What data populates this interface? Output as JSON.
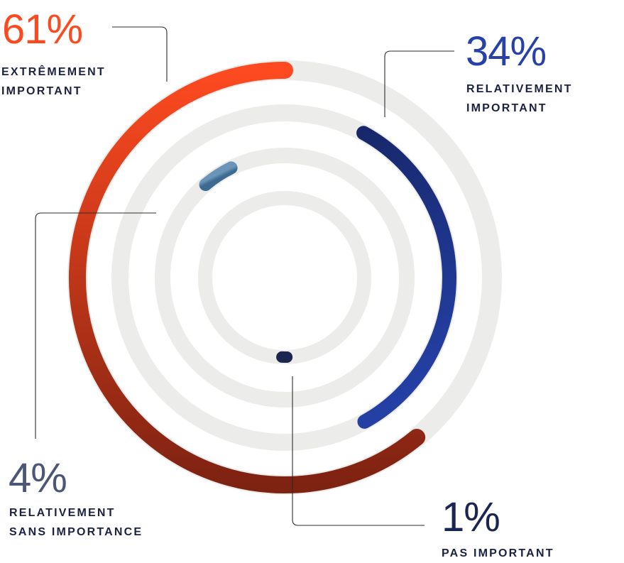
{
  "chart_data": {
    "type": "radial_bar",
    "series": [
      {
        "label": "EXTRÊMEMENT\nIMPORTANT",
        "percent_text": "61%",
        "value": 61,
        "color_start": "#fe4a20",
        "color_end": "#7e2212"
      },
      {
        "label": "RELATIVEMENT\nIMPORTANT",
        "percent_text": "34%",
        "value": 34,
        "color_start": "#2440a5",
        "color_end": "#17276a"
      },
      {
        "label": "RELATIVEMENT\nSANS IMPORTANCE",
        "percent_text": "4%",
        "value": 4,
        "color_start": "#6a95b8",
        "color_end": "#3c6a90"
      },
      {
        "label": "PAS IMPORTANT",
        "percent_text": "1%",
        "value": 1,
        "color_start": "#1a2550",
        "color_end": "#1a2550"
      }
    ],
    "track_color": "#ececea",
    "legend": "callouts"
  }
}
